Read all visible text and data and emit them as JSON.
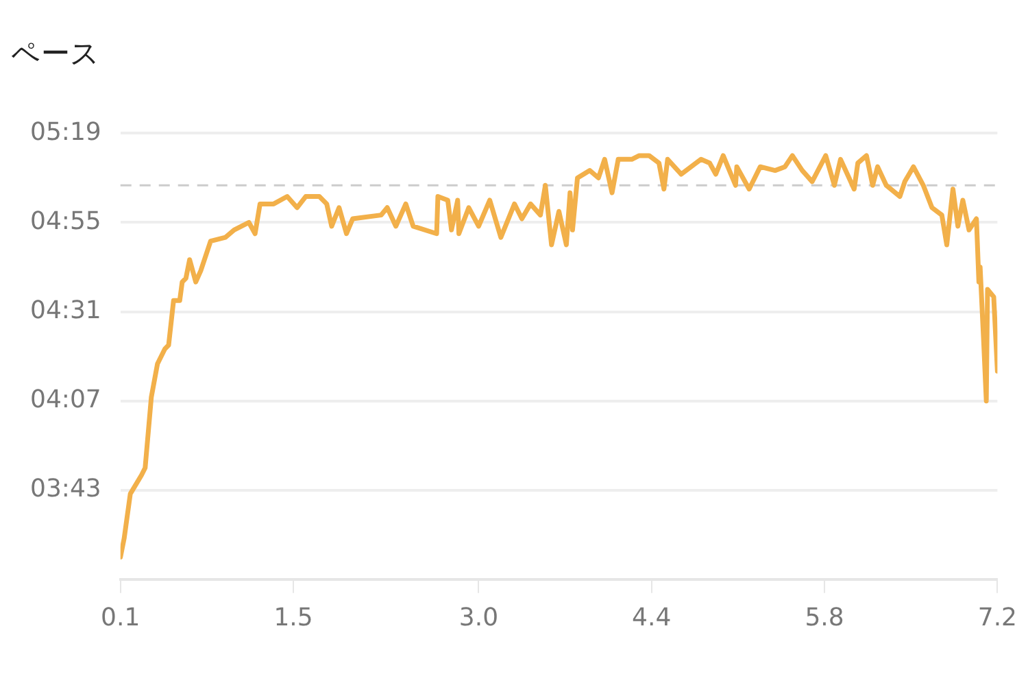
{
  "chart_data": {
    "type": "line",
    "title": "ペース",
    "x": [
      0.1,
      0.13,
      0.18,
      0.27,
      0.3,
      0.35,
      0.4,
      0.46,
      0.49,
      0.53,
      0.58,
      0.6,
      0.63,
      0.66,
      0.71,
      0.75,
      0.83,
      0.95,
      1.02,
      1.14,
      1.19,
      1.23,
      1.34,
      1.45,
      1.53,
      1.6,
      1.71,
      1.77,
      1.81,
      1.87,
      1.93,
      1.98,
      2.21,
      2.26,
      2.33,
      2.41,
      2.47,
      2.66,
      2.67,
      2.75,
      2.78,
      2.83,
      2.84,
      2.92,
      3.0,
      3.09,
      3.18,
      3.29,
      3.35,
      3.42,
      3.5,
      3.54,
      3.59,
      3.65,
      3.71,
      3.74,
      3.76,
      3.8,
      3.9,
      3.97,
      4.02,
      4.08,
      4.13,
      4.24,
      4.3,
      4.38,
      4.46,
      4.5,
      4.53,
      4.64,
      4.8,
      4.87,
      4.92,
      4.98,
      5.08,
      5.09,
      5.19,
      5.28,
      5.4,
      5.48,
      5.54,
      5.62,
      5.7,
      5.81,
      5.88,
      5.93,
      6.04,
      6.07,
      6.14,
      6.19,
      6.23,
      6.3,
      6.41,
      6.45,
      6.52,
      6.6,
      6.67,
      6.75,
      6.79,
      6.84,
      6.88,
      6.92,
      6.97,
      7.03,
      7.05,
      7.06,
      7.09,
      7.11,
      7.12,
      7.17,
      7.2
    ],
    "series": [
      {
        "color": "#f2b04a",
        "values": [
          205,
          210,
          222,
          227,
          229,
          248,
          257,
          261,
          262,
          274,
          274,
          279,
          280,
          285,
          279,
          282,
          290,
          291,
          293,
          295,
          292,
          300,
          300,
          302,
          299,
          302,
          302,
          300,
          294,
          299,
          292,
          296,
          297,
          299,
          294,
          300,
          294,
          292,
          302,
          301,
          293,
          301,
          292,
          299,
          294,
          301,
          291,
          300,
          296,
          300,
          297,
          305,
          289,
          298,
          289,
          303,
          293,
          307,
          309,
          307,
          312,
          303,
          312,
          312,
          313,
          313,
          311,
          304,
          312,
          308,
          312,
          311,
          308,
          313,
          305,
          310,
          304,
          310,
          309,
          310,
          313,
          309,
          306,
          313,
          305,
          312,
          304,
          311,
          313,
          305,
          310,
          305,
          302,
          306,
          310,
          305,
          299,
          297,
          289,
          304,
          294,
          301,
          293,
          296,
          279,
          283,
          262,
          247,
          277,
          275,
          255
        ]
      }
    ],
    "xlim": [
      0.1,
      7.2
    ],
    "xticks": [
      {
        "value": 0.1,
        "label": "0.1"
      },
      {
        "value": 1.5,
        "label": "1.5"
      },
      {
        "value": 3.0,
        "label": "3.0"
      },
      {
        "value": 4.4,
        "label": "4.4"
      },
      {
        "value": 5.8,
        "label": "5.8"
      },
      {
        "value": 7.2,
        "label": "7.2"
      }
    ],
    "ylim": [
      199,
      319
    ],
    "yticks": [
      {
        "value": 223,
        "label": "03:43"
      },
      {
        "value": 247,
        "label": "04:07"
      },
      {
        "value": 271,
        "label": "04:31"
      },
      {
        "value": 295,
        "label": "04:55"
      },
      {
        "value": 319,
        "label": "05:19"
      }
    ],
    "ref_lines": [
      {
        "axis": "y",
        "value": 305,
        "color": "#cccccc",
        "line_style": "dashed"
      }
    ],
    "grid": "y",
    "legend": false,
    "marker": "none",
    "line_style": "solid"
  }
}
